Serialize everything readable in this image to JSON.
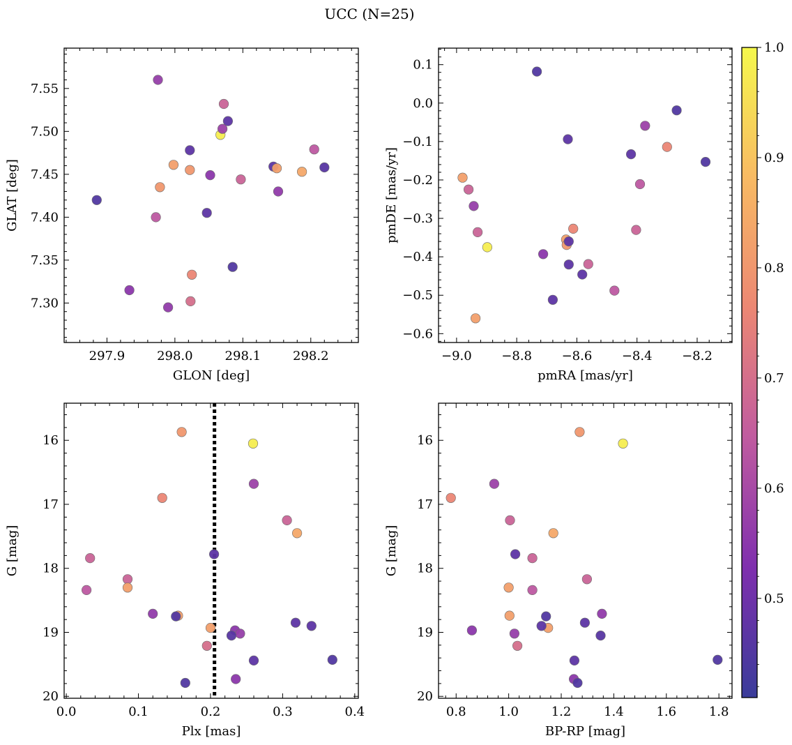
{
  "figure": {
    "title": "UCC (N=25)"
  },
  "colormap": {
    "name": "plasma",
    "range": [
      0.41,
      1.0
    ],
    "stops": [
      "#3a3c9a",
      "#7f2fae",
      "#c05ba0",
      "#ec8773",
      "#f8ba63",
      "#f5f84c"
    ],
    "ticks": [
      "0.5",
      "0.6",
      "0.7",
      "0.8",
      "0.9",
      "1.0"
    ],
    "tick_values": [
      0.5,
      0.6,
      0.7,
      0.8,
      0.9,
      1.0
    ]
  },
  "chart_data": [
    {
      "type": "scatter",
      "name": "sky",
      "xlabel": "GLON [deg]",
      "ylabel": "GLAT [deg]",
      "xlim": [
        297.837,
        298.27
      ],
      "ylim": [
        7.254,
        7.597
      ],
      "xticks": [
        297.9,
        298.0,
        298.1,
        298.2
      ],
      "xtick_labels": [
        "297.9",
        "298.0",
        "298.1",
        "298.2"
      ],
      "yticks": [
        7.3,
        7.35,
        7.4,
        7.45,
        7.5,
        7.55
      ],
      "ytick_labels": [
        "7.30",
        "7.35",
        "7.40",
        "7.45",
        "7.50",
        "7.55"
      ],
      "x": [
        297.885,
        297.975,
        297.933,
        297.99,
        297.972,
        297.978,
        297.998,
        298.022,
        298.022,
        298.025,
        298.023,
        298.047,
        298.052,
        298.067,
        298.07,
        298.072,
        298.078,
        298.085,
        298.097,
        298.145,
        298.15,
        298.152,
        298.187,
        298.205,
        298.22
      ],
      "y": [
        7.42,
        7.56,
        7.315,
        7.295,
        7.4,
        7.435,
        7.461,
        7.455,
        7.478,
        7.333,
        7.302,
        7.405,
        7.449,
        7.496,
        7.503,
        7.532,
        7.512,
        7.342,
        7.444,
        7.459,
        7.457,
        7.43,
        7.453,
        7.479,
        7.458
      ],
      "c": [
        0.45,
        0.57,
        0.55,
        0.56,
        0.64,
        0.8,
        0.82,
        0.8,
        0.47,
        0.76,
        0.7,
        0.47,
        0.55,
        0.98,
        0.58,
        0.67,
        0.47,
        0.45,
        0.67,
        0.47,
        0.82,
        0.56,
        0.84,
        0.64,
        0.46
      ]
    },
    {
      "type": "scatter",
      "name": "proper-motion",
      "xlabel": "pmRA [mas/yr]",
      "ylabel": "pmDE [mas/yr]",
      "xlim": [
        -9.06,
        -8.084
      ],
      "ylim": [
        -0.623,
        0.143
      ],
      "xticks": [
        -9.0,
        -8.8,
        -8.6,
        -8.4,
        -8.2
      ],
      "xtick_labels": [
        "−9.0",
        "−8.8",
        "−8.6",
        "−8.4",
        "−8.2"
      ],
      "yticks": [
        -0.6,
        -0.5,
        -0.4,
        -0.3,
        -0.2,
        -0.1,
        0.0,
        0.1
      ],
      "ytick_labels": [
        "−0.6",
        "−0.5",
        "−0.4",
        "−0.3",
        "−0.2",
        "−0.1",
        "0.0",
        "0.1"
      ],
      "x": [
        -8.733,
        -8.63,
        -8.373,
        -8.268,
        -8.42,
        -8.172,
        -8.3,
        -8.98,
        -8.96,
        -8.943,
        -8.93,
        -8.898,
        -8.39,
        -8.403,
        -8.612,
        -8.636,
        -8.634,
        -8.627,
        -8.712,
        -8.627,
        -8.582,
        -8.562,
        -8.475,
        -8.68,
        -8.937
      ],
      "y": [
        0.082,
        -0.094,
        -0.059,
        -0.019,
        -0.133,
        -0.153,
        -0.114,
        -0.194,
        -0.225,
        -0.268,
        -0.336,
        -0.375,
        -0.211,
        -0.33,
        -0.327,
        -0.355,
        -0.369,
        -0.36,
        -0.393,
        -0.42,
        -0.446,
        -0.419,
        -0.488,
        -0.512,
        -0.56
      ],
      "c": [
        0.45,
        0.47,
        0.58,
        0.45,
        0.47,
        0.45,
        0.76,
        0.82,
        0.67,
        0.57,
        0.67,
        0.98,
        0.64,
        0.67,
        0.76,
        0.82,
        0.8,
        0.47,
        0.55,
        0.47,
        0.47,
        0.67,
        0.64,
        0.47,
        0.82
      ]
    },
    {
      "type": "scatter",
      "name": "plx-magnitude",
      "xlabel": "Plx [mas]",
      "ylabel": "G [mag]",
      "xlim": [
        -0.003,
        0.405
      ],
      "ylim": [
        20.03,
        15.42
      ],
      "y_inverted": true,
      "xticks": [
        0.0,
        0.1,
        0.2,
        0.3,
        0.4
      ],
      "xtick_labels": [
        "0.0",
        "0.1",
        "0.2",
        "0.3",
        "0.4"
      ],
      "yticks": [
        16,
        17,
        18,
        19,
        20
      ],
      "ytick_labels": [
        "16",
        "17",
        "18",
        "19",
        "20"
      ],
      "vline": 0.2055,
      "x": [
        0.16,
        0.259,
        0.26,
        0.133,
        0.306,
        0.32,
        0.033,
        0.205,
        0.085,
        0.028,
        0.085,
        0.12,
        0.155,
        0.152,
        0.2,
        0.234,
        0.241,
        0.229,
        0.318,
        0.34,
        0.195,
        0.26,
        0.369,
        0.235,
        0.165
      ],
      "y": [
        15.87,
        16.05,
        16.68,
        16.9,
        17.25,
        17.45,
        17.84,
        17.78,
        18.17,
        18.34,
        18.3,
        18.71,
        18.74,
        18.75,
        18.93,
        18.97,
        19.02,
        19.05,
        18.85,
        18.9,
        19.21,
        19.44,
        19.43,
        19.73,
        19.79
      ],
      "c": [
        0.8,
        0.98,
        0.58,
        0.76,
        0.67,
        0.84,
        0.67,
        0.47,
        0.67,
        0.64,
        0.82,
        0.56,
        0.82,
        0.45,
        0.82,
        0.55,
        0.57,
        0.46,
        0.47,
        0.47,
        0.7,
        0.47,
        0.45,
        0.55,
        0.45
      ]
    },
    {
      "type": "scatter",
      "name": "color-magnitude",
      "xlabel": "BP-RP [mag]",
      "ylabel": "G [mag]",
      "xlim": [
        0.733,
        1.85
      ],
      "ylim": [
        20.03,
        15.42
      ],
      "y_inverted": true,
      "xticks": [
        0.8,
        1.0,
        1.2,
        1.4,
        1.6,
        1.8
      ],
      "xtick_labels": [
        "0.8",
        "1.0",
        "1.2",
        "1.4",
        "1.6",
        "1.8"
      ],
      "yticks": [
        16,
        17,
        18,
        19,
        20
      ],
      "ytick_labels": [
        "16",
        "17",
        "18",
        "19",
        "20"
      ],
      "x": [
        1.27,
        1.435,
        0.945,
        0.78,
        1.005,
        1.17,
        1.09,
        1.025,
        1.298,
        1.09,
        1.0,
        1.355,
        1.003,
        1.142,
        1.15,
        0.86,
        1.022,
        1.35,
        1.29,
        1.125,
        1.033,
        1.25,
        1.795,
        1.248,
        1.262
      ],
      "y": [
        15.87,
        16.05,
        16.68,
        16.9,
        17.25,
        17.45,
        17.84,
        17.78,
        18.17,
        18.34,
        18.3,
        18.71,
        18.74,
        18.75,
        18.93,
        18.97,
        19.02,
        19.05,
        18.85,
        18.9,
        19.21,
        19.44,
        19.43,
        19.73,
        19.79
      ],
      "c": [
        0.8,
        0.98,
        0.58,
        0.76,
        0.67,
        0.84,
        0.67,
        0.47,
        0.67,
        0.64,
        0.82,
        0.56,
        0.82,
        0.45,
        0.82,
        0.55,
        0.57,
        0.46,
        0.47,
        0.47,
        0.7,
        0.47,
        0.45,
        0.55,
        0.45
      ]
    }
  ]
}
